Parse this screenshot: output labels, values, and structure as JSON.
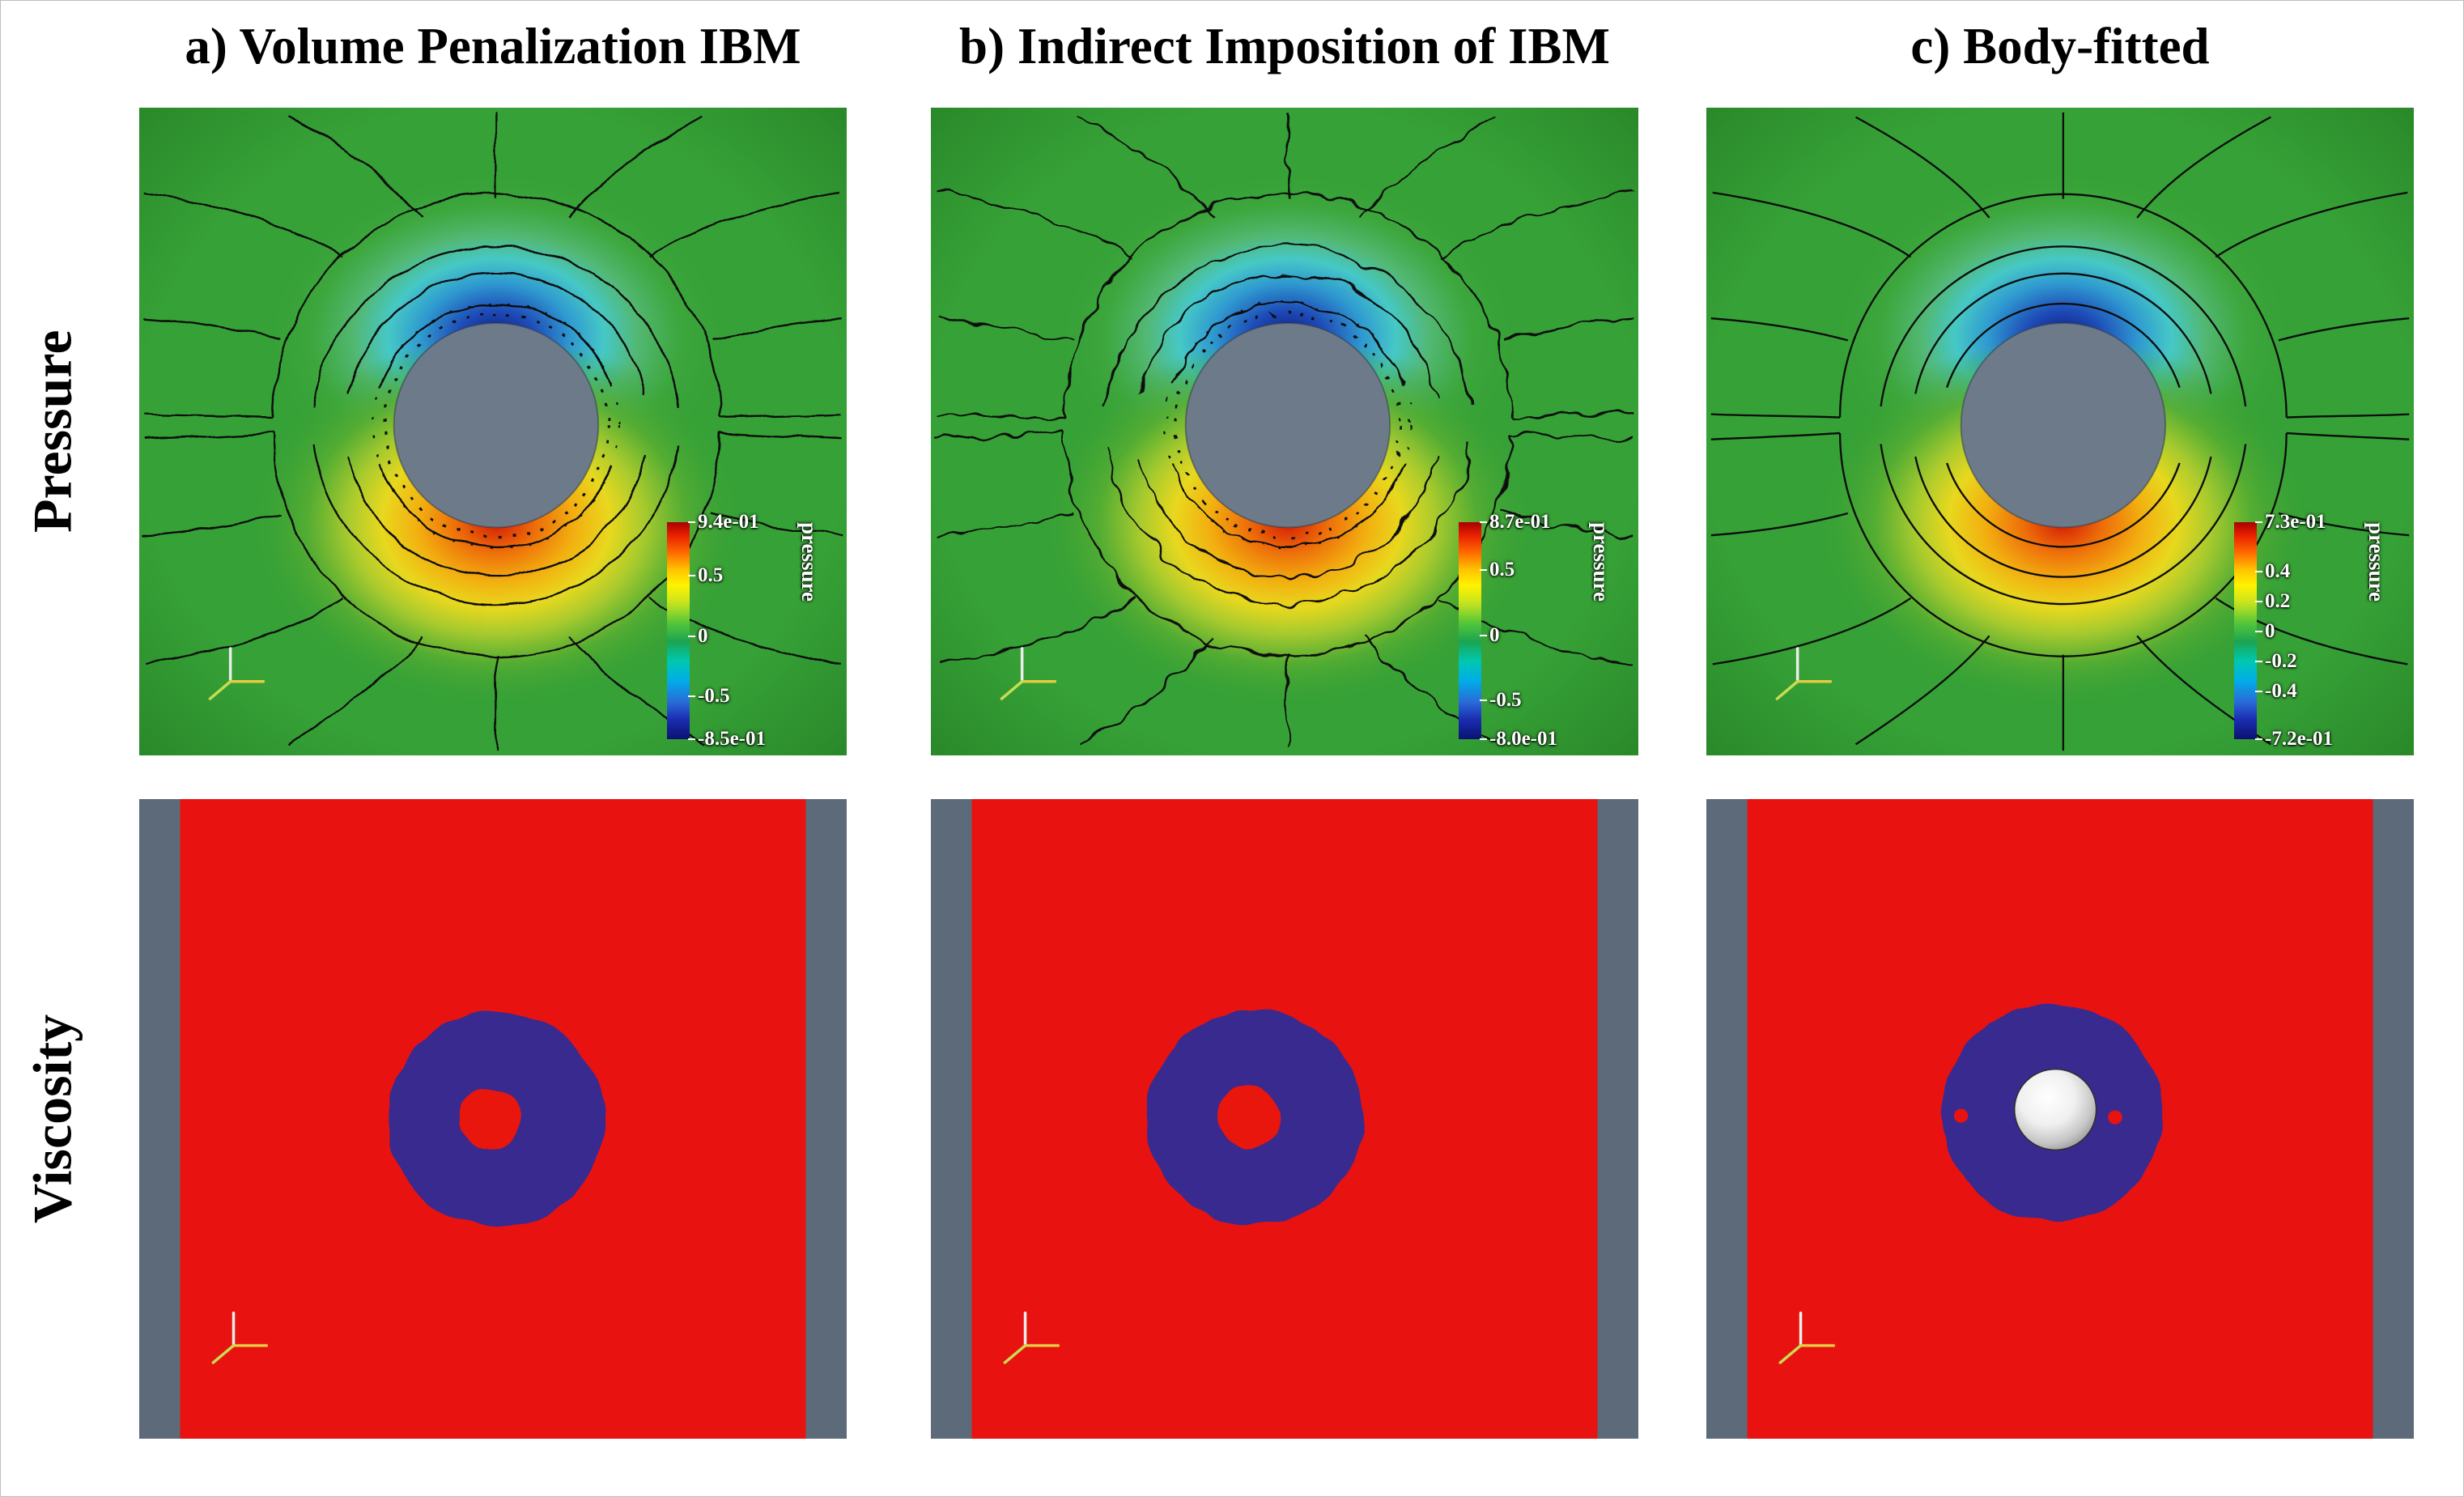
{
  "columns": [
    {
      "title": "a) Volume Penalization IBM"
    },
    {
      "title": "b) Indirect Imposition of IBM"
    },
    {
      "title": "c) Body-fitted"
    }
  ],
  "rows": [
    {
      "label": "Pressure"
    },
    {
      "label": "Viscosity"
    }
  ],
  "pressure_panels": [
    {
      "colorbar": {
        "title": "pressure",
        "ticks": [
          {
            "label": "9.4e-01",
            "pct": 0
          },
          {
            "label": "0.5",
            "pct": 24.6
          },
          {
            "label": "0",
            "pct": 52.5
          },
          {
            "label": "-0.5",
            "pct": 80.4
          },
          {
            "label": "-8.5e-01",
            "pct": 100
          }
        ]
      }
    },
    {
      "colorbar": {
        "title": "pressure",
        "ticks": [
          {
            "label": "8.7e-01",
            "pct": 0
          },
          {
            "label": "0.5",
            "pct": 22.2
          },
          {
            "label": "0",
            "pct": 52.1
          },
          {
            "label": "-0.5",
            "pct": 82.0
          },
          {
            "label": "-8.0e-01",
            "pct": 100
          }
        ]
      }
    },
    {
      "colorbar": {
        "title": "pressure",
        "ticks": [
          {
            "label": "7.3e-01",
            "pct": 0
          },
          {
            "label": "0.4",
            "pct": 22.8
          },
          {
            "label": "0.2",
            "pct": 36.6
          },
          {
            "label": "0",
            "pct": 50.3
          },
          {
            "label": "-0.2",
            "pct": 64.1
          },
          {
            "label": "-0.4",
            "pct": 77.9
          },
          {
            "label": "-7.2e-01",
            "pct": 100
          }
        ]
      }
    }
  ],
  "colors": {
    "field_green": "#36a136",
    "low_pressure_blue": "#0e1c7e",
    "high_pressure_red": "#d41c04",
    "cylinder_gray": "#6d7a8a",
    "viscosity_red": "#e81310",
    "viscosity_blue": "#38298f",
    "wall_gray": "#5c6a7a",
    "colorbar_text": "#ffffff"
  }
}
